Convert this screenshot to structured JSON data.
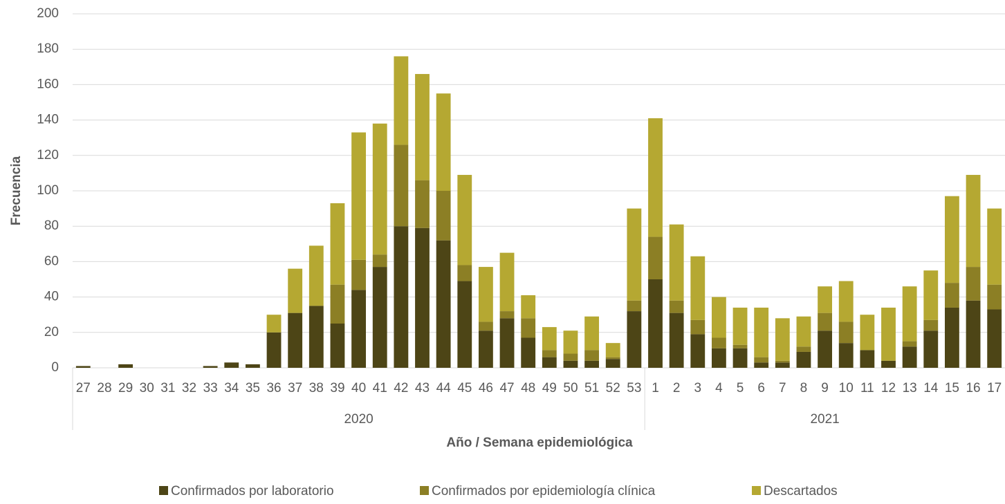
{
  "chart_data": {
    "type": "stacked_bar",
    "x_label": "Año / Semana epidemiológica",
    "y_label": "Frecuencia",
    "category_groups": [
      {
        "label": "2020",
        "categories": [
          "27",
          "28",
          "29",
          "30",
          "31",
          "32",
          "33",
          "34",
          "35",
          "36",
          "37",
          "38",
          "39",
          "40",
          "41",
          "42",
          "43",
          "44",
          "45",
          "46",
          "47",
          "48",
          "49",
          "50",
          "51",
          "52",
          "53"
        ]
      },
      {
        "label": "2021",
        "categories": [
          "1",
          "2",
          "3",
          "4",
          "5",
          "6",
          "7",
          "8",
          "9",
          "10",
          "11",
          "12",
          "13",
          "14",
          "15",
          "16",
          "17"
        ]
      }
    ],
    "series": [
      {
        "name": "Confirmados por laboratorio",
        "color": "#4d4516",
        "values": [
          1,
          0,
          2,
          0,
          0,
          0,
          1,
          3,
          2,
          20,
          31,
          35,
          25,
          44,
          57,
          80,
          79,
          72,
          49,
          21,
          28,
          17,
          6,
          4,
          4,
          5,
          32,
          50,
          31,
          19,
          11,
          11,
          3,
          3,
          9,
          21,
          14,
          10,
          4,
          12,
          21,
          34,
          38,
          33
        ]
      },
      {
        "name": "Confirmados por epidemiología clínica",
        "color": "#8c7f25",
        "values": [
          0,
          0,
          0,
          0,
          0,
          0,
          0,
          0,
          0,
          0,
          0,
          0,
          22,
          17,
          7,
          46,
          27,
          28,
          9,
          5,
          4,
          11,
          4,
          4,
          6,
          1,
          6,
          24,
          7,
          8,
          6,
          2,
          3,
          1,
          3,
          10,
          12,
          0,
          0,
          3,
          6,
          14,
          19,
          14
        ]
      },
      {
        "name": "Descartados",
        "color": "#b5a832",
        "values": [
          0,
          0,
          0,
          0,
          0,
          0,
          0,
          0,
          0,
          10,
          25,
          34,
          46,
          72,
          74,
          50,
          60,
          55,
          51,
          31,
          33,
          13,
          13,
          13,
          19,
          8,
          52,
          67,
          43,
          36,
          23,
          21,
          28,
          24,
          17,
          15,
          23,
          20,
          30,
          31,
          28,
          49,
          52,
          43
        ]
      }
    ],
    "ylim": [
      0,
      200
    ],
    "yticks": [
      0,
      20,
      40,
      60,
      80,
      100,
      120,
      140,
      160,
      180,
      200
    ],
    "grid": true,
    "legend": "bottom"
  }
}
